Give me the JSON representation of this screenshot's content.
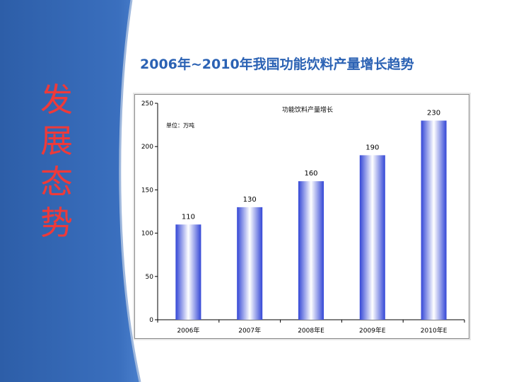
{
  "slide": {
    "side_title": [
      "发",
      "展",
      "态",
      "势"
    ],
    "title": "2006年~2010年我国功能饮料产量增长趋势"
  },
  "colors": {
    "panel_blue": "#2f62ad",
    "side_title": "#ee3a3a",
    "title": "#2b62b4",
    "bar_edge": "#3346d6",
    "bar_center": "#ffffff"
  },
  "chart_data": {
    "type": "bar",
    "title": "功能饮料产量增长",
    "unit_label": "单位：万吨",
    "categories": [
      "2006年",
      "2007年",
      "2008年E",
      "2009年E",
      "2010年E"
    ],
    "values": [
      110,
      130,
      160,
      190,
      230
    ],
    "ylim": [
      0,
      250
    ],
    "yticks": [
      0,
      50,
      100,
      150,
      200,
      250
    ],
    "grid": false,
    "legend": "none"
  }
}
